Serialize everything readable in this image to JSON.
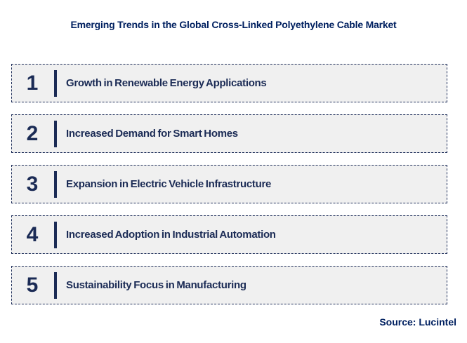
{
  "title": "Emerging Trends in the Global Cross-Linked Polyethylene Cable Market",
  "source": "Source: Lucintel",
  "colors": {
    "navy": "#1b2b55",
    "title_blue": "#002060",
    "box_background": "#f0f0f0",
    "box_border": "#1e2e5a",
    "page_background": "#ffffff"
  },
  "trends": [
    {
      "number": "1",
      "label": "Growth in Renewable Energy Applications"
    },
    {
      "number": "2",
      "label": "Increased Demand for Smart Homes"
    },
    {
      "number": "3",
      "label": "Expansion in Electric Vehicle Infrastructure"
    },
    {
      "number": "4",
      "label": "Increased Adoption in Industrial Automation"
    },
    {
      "number": "5",
      "label": "Sustainability Focus in Manufacturing"
    }
  ]
}
